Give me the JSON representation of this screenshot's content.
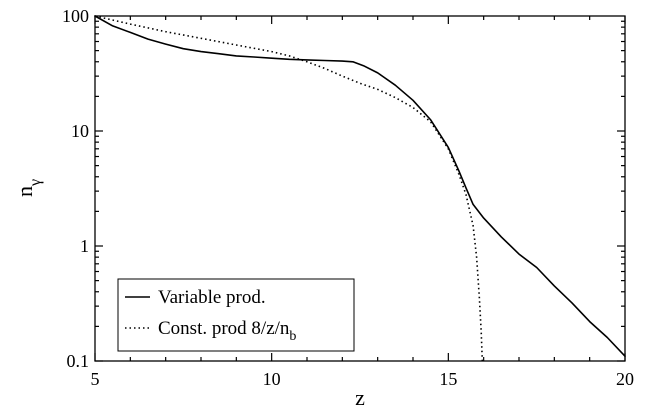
{
  "chart_data": {
    "type": "line",
    "title": "",
    "xlabel": "z",
    "ylabel": {
      "base": "n",
      "subscript": "γ"
    },
    "xlim": [
      5,
      20
    ],
    "ylim": [
      0.1,
      100
    ],
    "yscale": "log",
    "grid": false,
    "legend_position": "bottom-left",
    "x_ticks": [
      {
        "value": 5,
        "label": "5"
      },
      {
        "value": 10,
        "label": "10"
      },
      {
        "value": 15,
        "label": "15"
      },
      {
        "value": 20,
        "label": "20"
      }
    ],
    "y_ticks": [
      {
        "value": 0.1,
        "label": "0.1"
      },
      {
        "value": 1,
        "label": "1"
      },
      {
        "value": 10,
        "label": "10"
      },
      {
        "value": 100,
        "label": "100"
      }
    ],
    "series": [
      {
        "name": "Variable prod.",
        "style": "solid",
        "color": "#000000",
        "points": [
          [
            5,
            100
          ],
          [
            5.5,
            82
          ],
          [
            6,
            72
          ],
          [
            6.5,
            63
          ],
          [
            7,
            57
          ],
          [
            7.5,
            52
          ],
          [
            8,
            49
          ],
          [
            8.5,
            47
          ],
          [
            9,
            45
          ],
          [
            9.5,
            44
          ],
          [
            10,
            43
          ],
          [
            10.5,
            42
          ],
          [
            11,
            41.5
          ],
          [
            11.5,
            41
          ],
          [
            12,
            40.5
          ],
          [
            12.3,
            40
          ],
          [
            12.6,
            37
          ],
          [
            13,
            32
          ],
          [
            13.5,
            25
          ],
          [
            14,
            18.5
          ],
          [
            14.5,
            12.5
          ],
          [
            15,
            7.2
          ],
          [
            15.3,
            4.5
          ],
          [
            15.5,
            3.2
          ],
          [
            15.7,
            2.3
          ],
          [
            16,
            1.75
          ],
          [
            16.5,
            1.2
          ],
          [
            17,
            0.85
          ],
          [
            17.5,
            0.65
          ],
          [
            18,
            0.45
          ],
          [
            18.5,
            0.32
          ],
          [
            19,
            0.22
          ],
          [
            19.5,
            0.16
          ],
          [
            20,
            0.11
          ]
        ]
      },
      {
        "name": "Const. prod 8/z/n",
        "name_subscript": "b",
        "style": "dotted",
        "color": "#000000",
        "points": [
          [
            5,
            100
          ],
          [
            6,
            85
          ],
          [
            7,
            73
          ],
          [
            8,
            64
          ],
          [
            9,
            56
          ],
          [
            10,
            49
          ],
          [
            10.5,
            45
          ],
          [
            11,
            40
          ],
          [
            11.5,
            35
          ],
          [
            12,
            30
          ],
          [
            12.5,
            26
          ],
          [
            13,
            23
          ],
          [
            13.5,
            19.5
          ],
          [
            14,
            16
          ],
          [
            14.5,
            12
          ],
          [
            15,
            7
          ],
          [
            15.3,
            4.2
          ],
          [
            15.5,
            2.8
          ],
          [
            15.7,
            1.5
          ],
          [
            15.8,
            0.8
          ],
          [
            15.88,
            0.35
          ],
          [
            15.93,
            0.18
          ],
          [
            15.96,
            0.1
          ]
        ]
      }
    ]
  }
}
